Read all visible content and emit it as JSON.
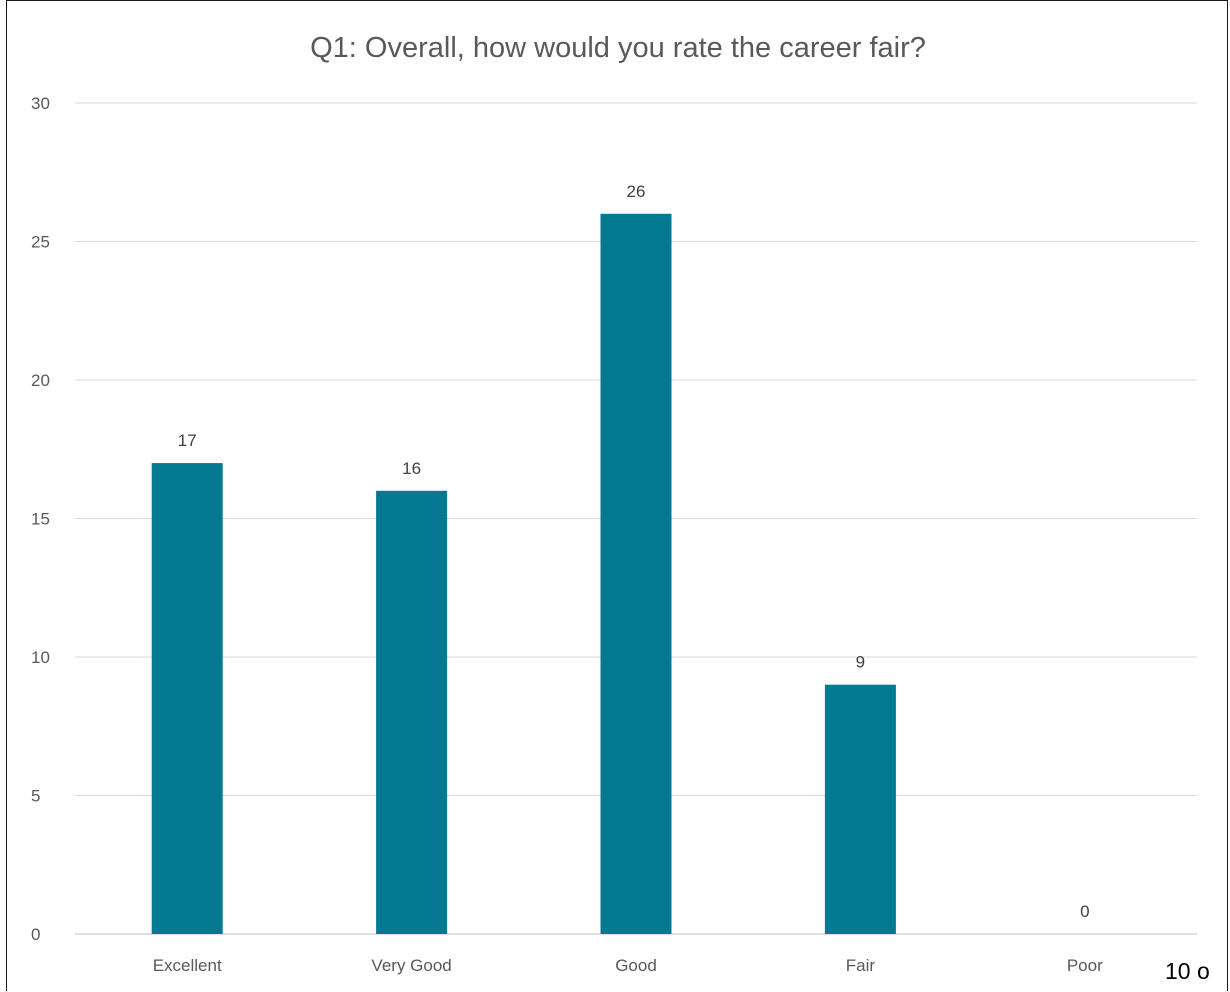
{
  "chart_data": {
    "type": "bar",
    "title": "Q1: Overall, how would you rate the career fair?",
    "xlabel": "",
    "ylabel": "",
    "categories": [
      "Excellent",
      "Very Good",
      "Good",
      "Fair",
      "Poor"
    ],
    "values": [
      17,
      16,
      26,
      9,
      0
    ],
    "ylim": [
      0,
      30
    ],
    "yticks": [
      0,
      5,
      10,
      15,
      20,
      25,
      30
    ],
    "grid": true,
    "legend": "none",
    "bar_color": "#037a91",
    "data_labels": true
  },
  "footer": {
    "page_text": "10 o"
  }
}
